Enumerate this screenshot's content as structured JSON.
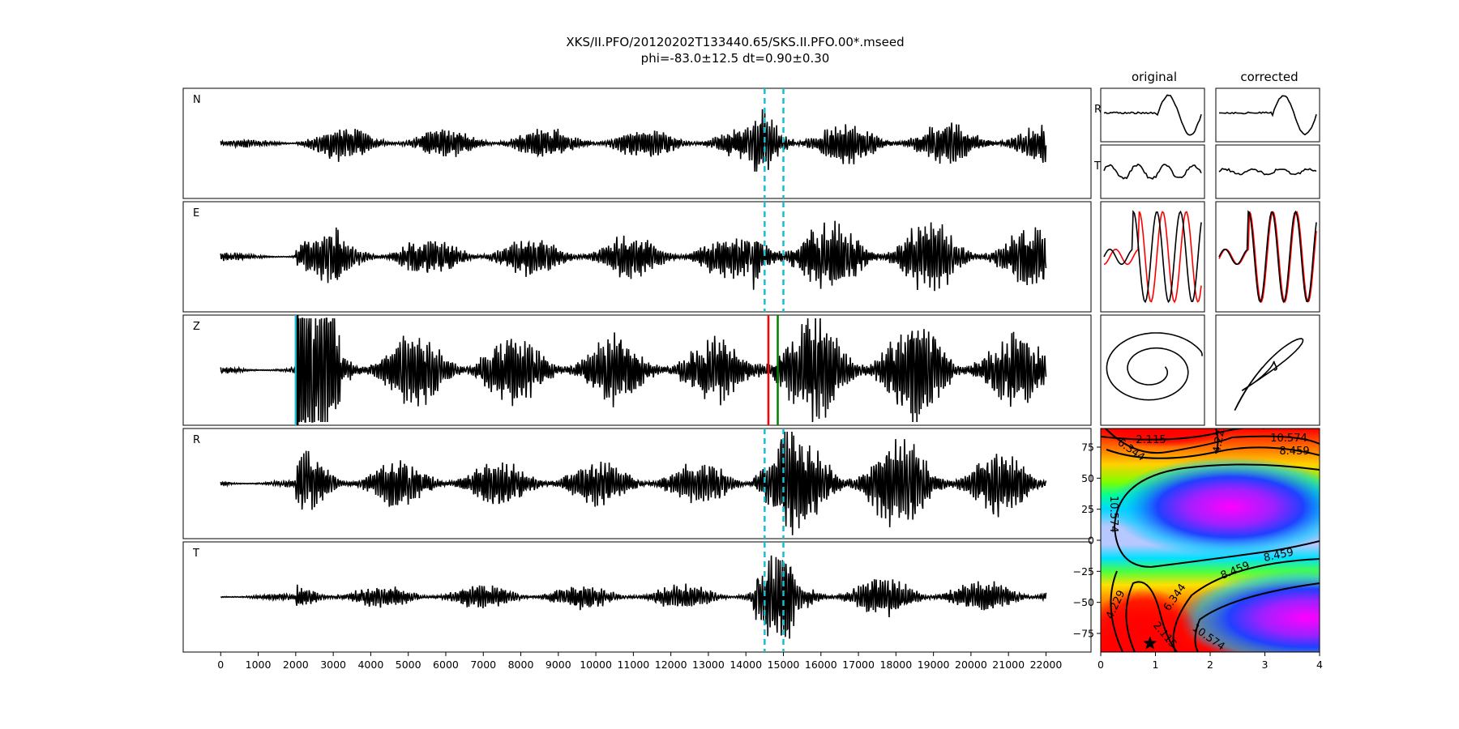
{
  "title_line1": "XKS/II.PFO/20120202T133440.65/SKS.II.PFO.00*.mseed",
  "title_line2": "phi=-83.0±12.5 dt=0.90±0.30",
  "colors": {
    "trace": "#000000",
    "window_marker": "#17becf",
    "pick_red": "#ff0000",
    "pick_green": "#008000",
    "pick_cyan": "#17becf",
    "overlay_red": "#ff0000",
    "star": "#000000"
  },
  "chart_data": [
    {
      "type": "line",
      "name": "waveform-traces",
      "components": [
        "N",
        "E",
        "Z",
        "R",
        "T"
      ],
      "x_range": [
        0,
        22000
      ],
      "xlim": [
        -1000,
        23200
      ],
      "x_ticks": [
        0,
        1000,
        2000,
        3000,
        4000,
        5000,
        6000,
        7000,
        8000,
        9000,
        10000,
        11000,
        12000,
        13000,
        14000,
        15000,
        16000,
        17000,
        18000,
        19000,
        20000,
        21000,
        22000
      ],
      "x_tick_labels": [
        "0",
        "1000",
        "2000",
        "3000",
        "4000",
        "5000",
        "6000",
        "7000",
        "8000",
        "9000",
        "10000",
        "11000",
        "12000",
        "13000",
        "14000",
        "15000",
        "16000",
        "17000",
        "18000",
        "19000",
        "20000",
        "21000",
        "22000"
      ],
      "window_start": 14500,
      "window_end": 15000,
      "picks": [
        {
          "component": "Z",
          "x": 2000,
          "color": "cyan"
        },
        {
          "component": "Z",
          "x": 14600,
          "color": "red"
        },
        {
          "component": "Z",
          "x": 14850,
          "color": "green"
        }
      ],
      "onset_x": 2050,
      "grid": false,
      "legend": "none"
    },
    {
      "type": "line",
      "name": "window-traces",
      "column_titles": [
        "original",
        "corrected"
      ],
      "row_labels": [
        "R",
        "T"
      ],
      "grid": false
    },
    {
      "type": "heatmap",
      "name": "energy-grid",
      "x_range": [
        0,
        4
      ],
      "y_range": [
        -90,
        90
      ],
      "x_ticks": [
        0,
        1,
        2,
        3,
        4
      ],
      "x_tick_labels": [
        "0",
        "1",
        "2",
        "3",
        "4"
      ],
      "y_ticks": [
        75,
        50,
        25,
        0,
        -25,
        -50,
        -75
      ],
      "y_tick_labels": [
        "75",
        "50",
        "25",
        "0",
        "−25",
        "−50",
        "−75"
      ],
      "contour_labels": [
        "2.115",
        "4.229",
        "6.344",
        "8.459",
        "10.574"
      ],
      "best_fit": {
        "dt": 0.9,
        "phi": -83.0
      },
      "colormap": "gist_rainbow"
    }
  ]
}
